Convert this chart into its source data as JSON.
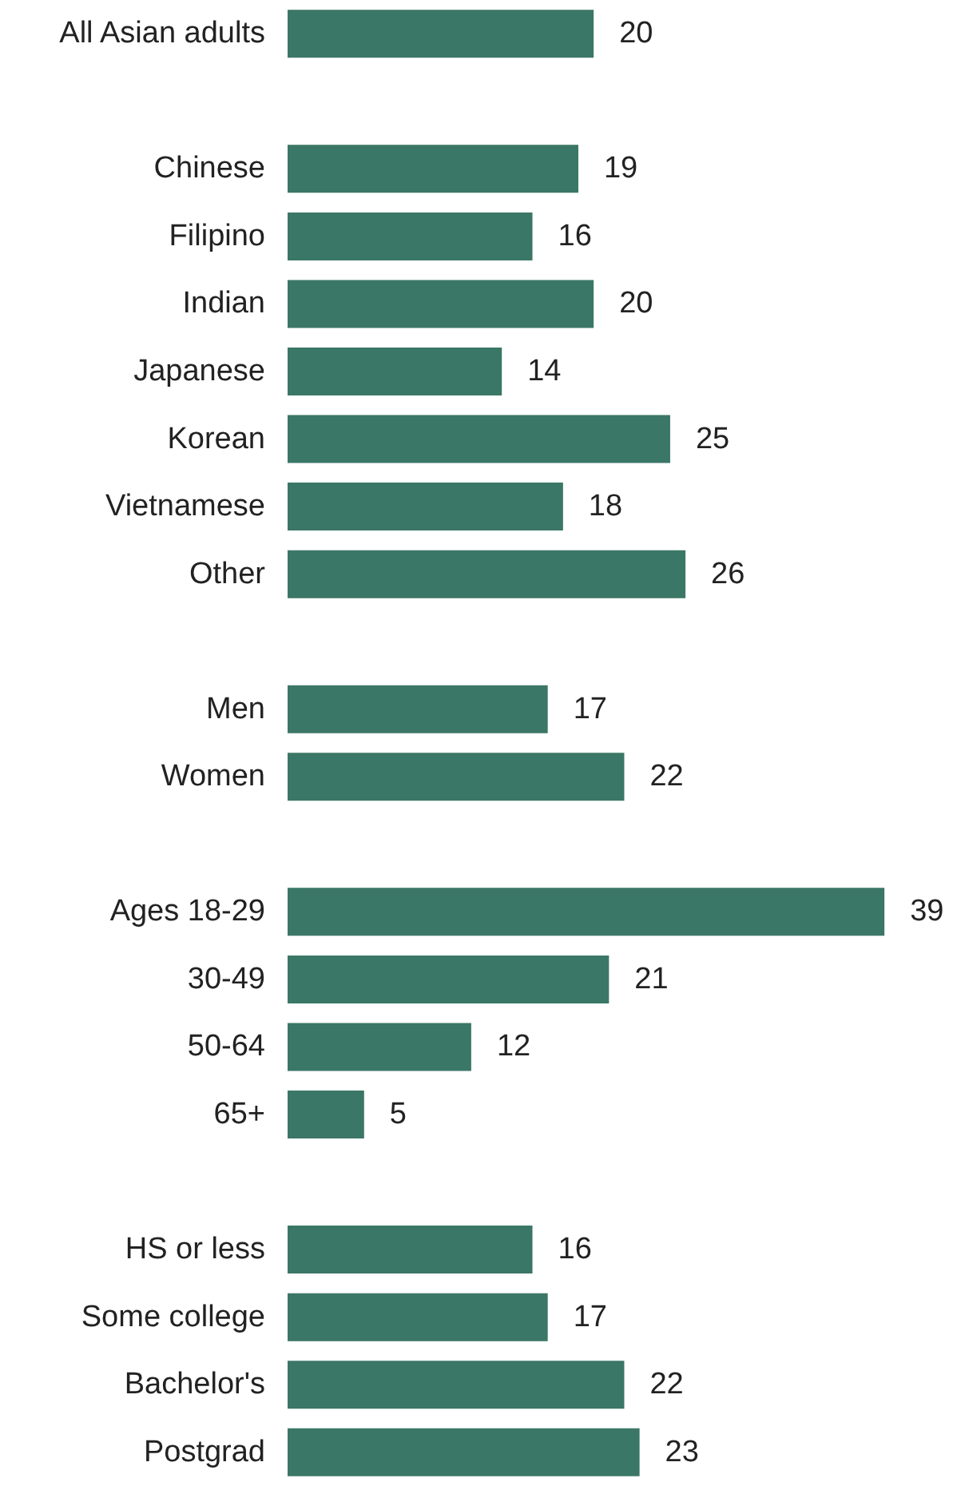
{
  "chart_data": {
    "type": "bar",
    "orientation": "horizontal",
    "color": "#3b7766",
    "data_labels": true,
    "tick_labels": "y",
    "categories": [
      "All Asian adults",
      null,
      "Chinese",
      "Filipino",
      "Indian",
      "Japanese",
      "Korean",
      "Vietnamese",
      "Other",
      null,
      "Men",
      "Women",
      null,
      "Ages 18-29",
      "30-49",
      "50-64",
      "65+",
      null,
      "HS or less",
      "Some college",
      "Bachelor's",
      "Postgrad"
    ],
    "values": [
      20,
      null,
      19,
      16,
      20,
      14,
      25,
      18,
      26,
      null,
      17,
      22,
      null,
      39,
      21,
      12,
      5,
      null,
      16,
      17,
      22,
      23
    ]
  }
}
